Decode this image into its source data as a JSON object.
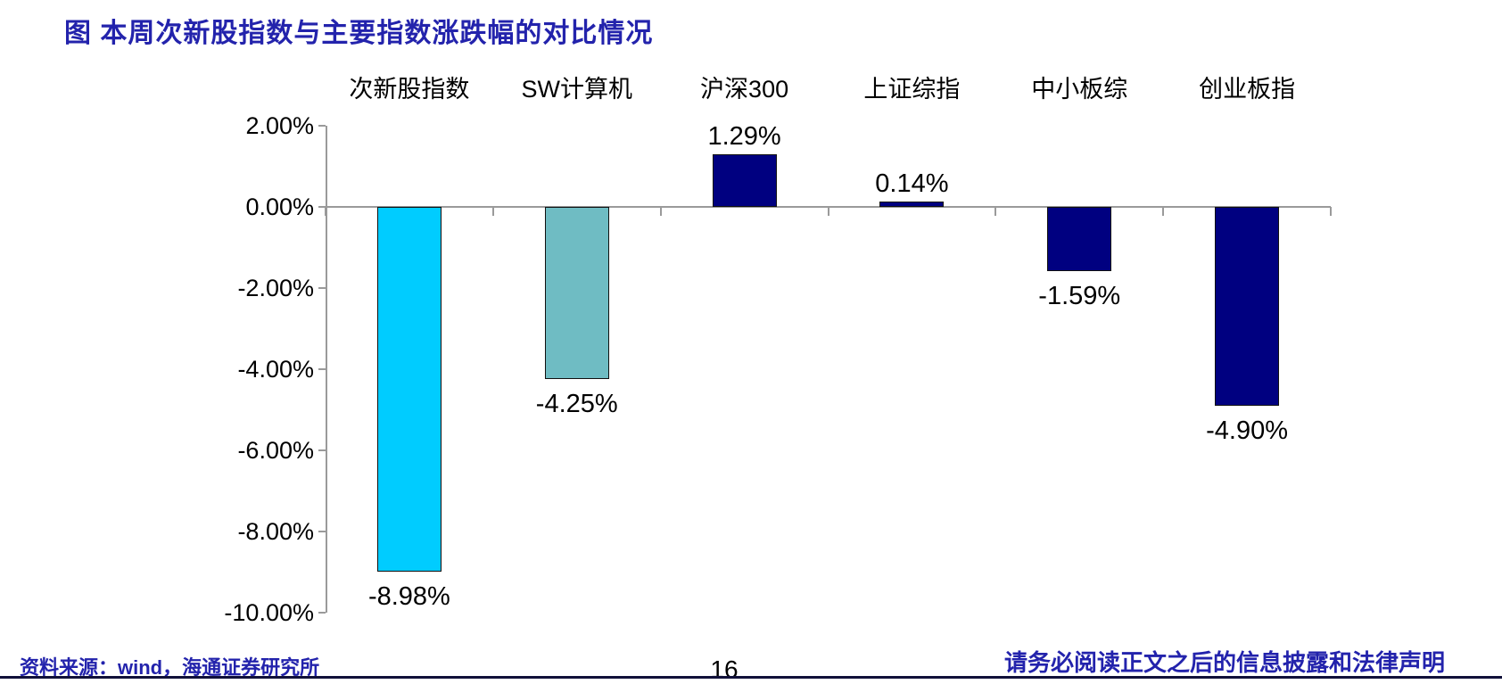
{
  "title": "图 本周次新股指数与主要指数涨跌幅的对比情况",
  "chart_data": {
    "type": "bar",
    "categories": [
      "次新股指数",
      "SW计算机",
      "沪深300",
      "上证综指",
      "中小板综",
      "创业板指"
    ],
    "values": [
      -8.98,
      -4.25,
      1.29,
      0.14,
      -1.59,
      -4.9
    ],
    "data_labels": [
      "-8.98%",
      "-4.25%",
      "1.29%",
      "0.14%",
      "-1.59%",
      "-4.90%"
    ],
    "bar_colors": [
      "#00CCFF",
      "#6FBCC3",
      "#000080",
      "#000080",
      "#000080",
      "#000080"
    ],
    "y_tick_labels": [
      "2.00%",
      "0.00%",
      "-2.00%",
      "-4.00%",
      "-6.00%",
      "-8.00%",
      "-10.00%"
    ],
    "y_tick_values": [
      2,
      0,
      -2,
      -4,
      -6,
      -8,
      -10
    ],
    "ylim": [
      -10,
      2
    ],
    "xlabel": "",
    "ylabel": "",
    "grid": false,
    "legend_position": "none",
    "category_labels_position": "top"
  },
  "footer": {
    "source": "资料来源：wind，海通证券研究所",
    "page_number": "16",
    "disclaimer": "请务必阅读正文之后的信息披露和法律声明"
  },
  "colors": {
    "title_text": "#2323AC",
    "footer_text": "#2323AC",
    "axis_line": "#9a9a9a",
    "bar_border": "#101010",
    "highlight_bar": "#00CCFF",
    "secondary_bar": "#6FBCC3",
    "default_bar": "#000080",
    "footer_rule": "#10103a",
    "background": "#ffffff"
  }
}
